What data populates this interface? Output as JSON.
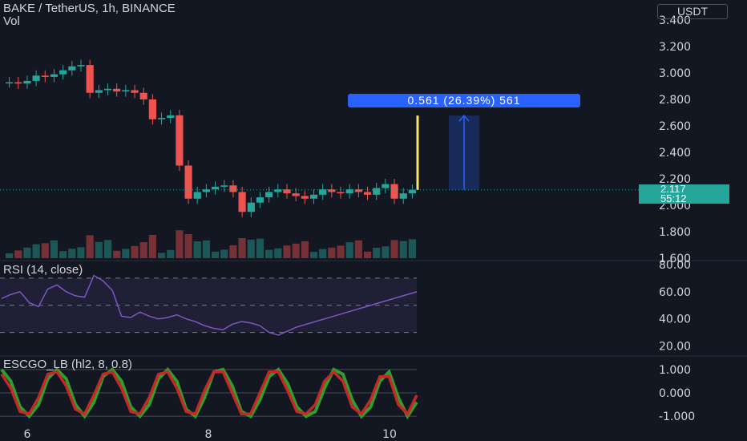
{
  "header": {
    "symbol_line": "BAKE / TetherUS, 1h, BINANCE",
    "volume_label": "Vol"
  },
  "currency_button": "USDT",
  "measure_label": "0.561 (26.39%) 561",
  "last_price": {
    "value": "2.117",
    "countdown": "55:12"
  },
  "colors": {
    "up": "#26a69a",
    "down": "#ef5350",
    "background": "#131722",
    "measure": "#2962ff",
    "rsi": "#7e57c2"
  },
  "chart_data": [
    {
      "type": "candlestick",
      "y_ticks": [
        "3.400",
        "3.200",
        "3.000",
        "2.800",
        "2.600",
        "2.400",
        "2.200",
        "2.000",
        "1.800",
        "1.600"
      ],
      "ylim": [
        1.6,
        3.4
      ],
      "x_ticks": [
        "6",
        "8",
        "10"
      ],
      "approx_close_path": [
        2.93,
        2.92,
        2.94,
        2.98,
        2.97,
        2.99,
        3.02,
        3.05,
        3.06,
        2.85,
        2.87,
        2.88,
        2.86,
        2.87,
        2.85,
        2.8,
        2.65,
        2.66,
        2.68,
        2.3,
        2.05,
        2.1,
        2.12,
        2.14,
        2.15,
        2.1,
        1.95,
        2.02,
        2.06,
        2.1,
        2.12,
        2.09,
        2.07,
        2.05,
        2.08,
        2.12,
        2.1,
        2.09,
        2.12,
        2.1,
        2.08,
        2.13,
        2.16,
        2.05,
        2.09,
        2.117
      ],
      "last_price": 2.117,
      "measure_from": 2.117,
      "measure_to": 2.678,
      "measure_change": 0.561
    },
    {
      "type": "line",
      "title": "RSI (14, close)",
      "y_ticks": [
        "80.00",
        "60.00",
        "40.00",
        "20.00"
      ],
      "ylim": [
        15,
        80
      ],
      "bands": [
        70,
        50,
        30
      ],
      "values": [
        55,
        58,
        60,
        52,
        49,
        62,
        65,
        60,
        57,
        56,
        72,
        68,
        61,
        42,
        41,
        45,
        42,
        40,
        41,
        43,
        40,
        38,
        35,
        33,
        32,
        36,
        38,
        37,
        35,
        30,
        28,
        31,
        34,
        36,
        38,
        40,
        42,
        44,
        46,
        48,
        50,
        52,
        54,
        56,
        58,
        60
      ]
    },
    {
      "type": "line",
      "title": "ESCGO_LB (hl2, 8, 0.8)",
      "y_ticks": [
        "1.000",
        "0.000",
        "-1.000"
      ],
      "ylim": [
        -1.2,
        1.2
      ],
      "series": [
        {
          "values": [
            1,
            0.5,
            -0.6,
            -1,
            -0.5,
            0.6,
            1,
            0.6,
            -0.5,
            -1,
            -0.4,
            0.7,
            1,
            0.5,
            -0.6,
            -1,
            -0.5,
            0.6,
            1,
            0.5,
            -0.7,
            -1,
            -0.2,
            0.9,
            1,
            0.3,
            -0.8,
            -1,
            -0.3,
            0.7,
            1,
            0.4,
            -0.6,
            -1,
            -0.8,
            0.2,
            1,
            0.8,
            -0.3,
            -1,
            -0.6,
            0.5,
            0.9,
            -0.2,
            -1,
            -0.4
          ]
        },
        {
          "values": [
            0.8,
            0.2,
            -0.8,
            -0.9,
            -0.2,
            0.8,
            0.9,
            0.3,
            -0.7,
            -0.9,
            -0.1,
            0.8,
            0.9,
            0.2,
            -0.8,
            -0.9,
            -0.2,
            0.8,
            0.9,
            0.2,
            -0.8,
            -0.9,
            0.1,
            0.9,
            0.9,
            0.0,
            -0.9,
            -0.9,
            0.0,
            0.9,
            0.9,
            0.1,
            -0.8,
            -0.9,
            -0.5,
            0.5,
            0.9,
            0.5,
            -0.6,
            -0.9,
            -0.3,
            0.7,
            0.7,
            -0.5,
            -0.9,
            -0.1
          ]
        }
      ]
    }
  ]
}
